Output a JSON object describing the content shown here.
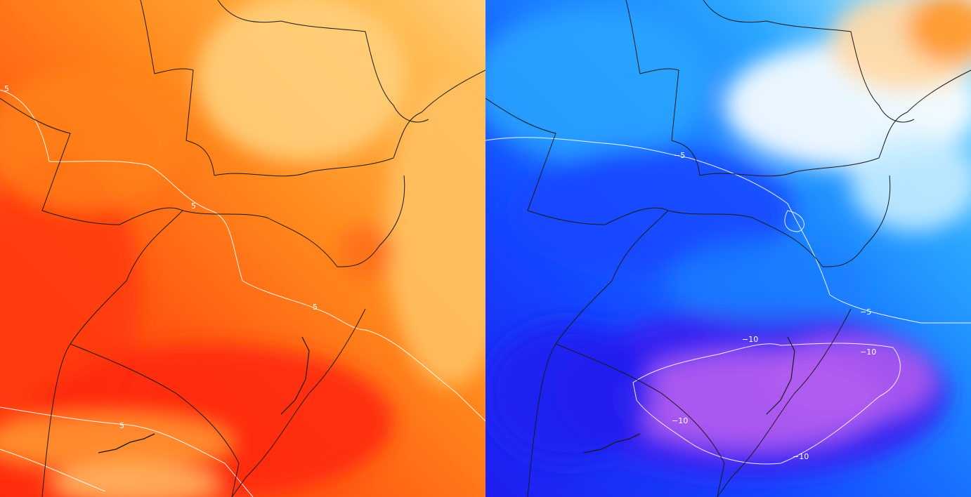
{
  "maps": [
    {
      "id": "warm",
      "palette": [
        "#ff2a0d",
        "#ff5a12",
        "#ff7a1a",
        "#ff9c22",
        "#ffb547",
        "#ffcf7c",
        "#ffe2a8"
      ],
      "contour_labels": [
        {
          "text": "5",
          "region": "northwest coast"
        },
        {
          "text": "5",
          "region": "center"
        },
        {
          "text": "5",
          "region": "east lowlands"
        },
        {
          "text": "5",
          "region": "southwest"
        }
      ]
    },
    {
      "id": "cold",
      "palette": [
        "#b05cf0",
        "#6a2df0",
        "#1f1cf0",
        "#1447ff",
        "#1a7dff",
        "#2aa6ff",
        "#8fdcff",
        "#eaf7ff",
        "#ffffff",
        "#ffd9a8",
        "#ff9a2e"
      ],
      "contour_labels": [
        {
          "text": "−5",
          "region": "north-center"
        },
        {
          "text": "−5",
          "region": "east coast"
        },
        {
          "text": "−10",
          "region": "south-center"
        },
        {
          "text": "−10",
          "region": "southeast"
        },
        {
          "text": "−10",
          "region": "southwest"
        },
        {
          "text": "−10",
          "region": "south"
        }
      ]
    }
  ]
}
